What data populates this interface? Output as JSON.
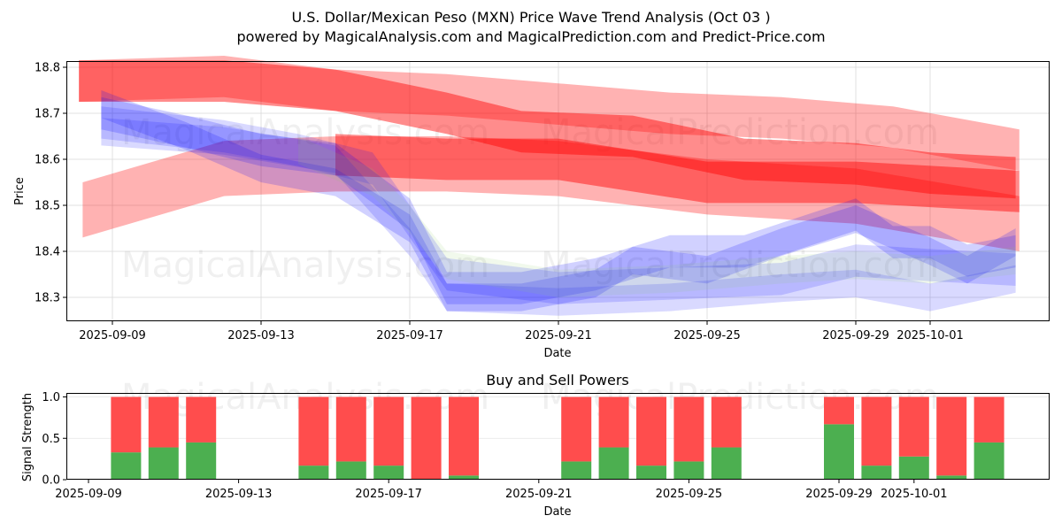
{
  "title": "U.S. Dollar/Mexican Peso (MXN) Price Wave Trend Analysis (Oct 03 )",
  "subtitle": "powered by MagicalAnalysis.com and MagicalPrediction.com and Predict-Price.com",
  "watermarks": [
    "MagicalAnalysis.com",
    "MagicalPrediction.com"
  ],
  "colors": {
    "sell": "#ff0000",
    "buy": "#0000ff",
    "green": "#4caf50",
    "red": "#ff4d4d"
  },
  "chart_data": [
    {
      "type": "area",
      "title": "",
      "xlabel": "Date",
      "ylabel": "Price",
      "xlim": [
        "2025-09-07.8",
        "2025-10-04.2"
      ],
      "ylim": [
        18.248,
        18.814
      ],
      "grid": true,
      "x_ticks": [
        "2025-09-09",
        "2025-09-13",
        "2025-09-17",
        "2025-09-21",
        "2025-09-25",
        "2025-09-29",
        "2025-10-01"
      ],
      "x_tick_days": [
        0,
        4,
        8,
        12,
        16,
        20,
        22
      ],
      "y_ticks": [
        18.3,
        18.4,
        18.5,
        18.6,
        18.7,
        18.8
      ],
      "series": [
        {
          "name": "red-band-upper",
          "color": "red",
          "alpha": 0.3,
          "halfwidth": 0.045,
          "points": [
            [
              -0.9,
              18.77
            ],
            [
              3,
              18.78
            ],
            [
              6,
              18.75
            ],
            [
              9,
              18.74
            ],
            [
              12,
              18.72
            ],
            [
              15,
              18.7
            ],
            [
              18,
              18.69
            ],
            [
              21,
              18.67
            ],
            [
              24.4,
              18.62
            ]
          ]
        },
        {
          "name": "red-band-main",
          "color": "red",
          "alpha": 0.45,
          "halfwidth": 0.045,
          "points": [
            [
              -0.9,
              18.77
            ],
            [
              3,
              18.77
            ],
            [
              6,
              18.75
            ],
            [
              9,
              18.7
            ],
            [
              11,
              18.66
            ],
            [
              14,
              18.65
            ],
            [
              17,
              18.6
            ],
            [
              20,
              18.59
            ],
            [
              22,
              18.57
            ],
            [
              24.3,
              18.56
            ]
          ]
        },
        {
          "name": "red-band-lower",
          "color": "red",
          "alpha": 0.45,
          "halfwidth": 0.045,
          "points": [
            [
              6,
              18.61
            ],
            [
              9,
              18.6
            ],
            [
              12,
              18.6
            ],
            [
              16,
              18.55
            ],
            [
              20,
              18.55
            ],
            [
              24.4,
              18.53
            ]
          ]
        },
        {
          "name": "red-band-rising",
          "color": "red",
          "alpha": 0.3,
          "halfwidth": 0.06,
          "points": [
            [
              -0.8,
              18.49
            ],
            [
              3,
              18.58
            ],
            [
              6,
              18.59
            ],
            [
              9,
              18.59
            ],
            [
              12,
              18.58
            ],
            [
              16,
              18.54
            ],
            [
              20,
              18.52
            ],
            [
              24.4,
              18.46
            ]
          ]
        },
        {
          "name": "blue-band-1",
          "color": "blue",
          "alpha": 0.18,
          "halfwidth": 0.035,
          "points": [
            [
              -0.3,
              18.7
            ],
            [
              2,
              18.66
            ],
            [
              4,
              18.62
            ],
            [
              6,
              18.6
            ],
            [
              8,
              18.48
            ],
            [
              9,
              18.32
            ],
            [
              11,
              18.32
            ],
            [
              13,
              18.35
            ],
            [
              15,
              18.4
            ],
            [
              17,
              18.4
            ],
            [
              20,
              18.48
            ],
            [
              21,
              18.42
            ],
            [
              22,
              18.42
            ],
            [
              23,
              18.38
            ],
            [
              24.3,
              18.4
            ]
          ]
        },
        {
          "name": "blue-band-2",
          "color": "blue",
          "alpha": 0.18,
          "halfwidth": 0.03,
          "points": [
            [
              -0.3,
              18.72
            ],
            [
              2,
              18.65
            ],
            [
              4,
              18.58
            ],
            [
              6,
              18.55
            ],
            [
              8,
              18.45
            ],
            [
              9,
              18.3
            ],
            [
              11,
              18.3
            ],
            [
              13,
              18.33
            ],
            [
              14,
              18.38
            ],
            [
              16,
              18.36
            ],
            [
              18,
              18.42
            ],
            [
              20,
              18.47
            ],
            [
              22,
              18.4
            ],
            [
              23,
              18.36
            ],
            [
              24.3,
              18.42
            ]
          ]
        },
        {
          "name": "blue-band-3",
          "color": "blue",
          "alpha": 0.15,
          "halfwidth": 0.035,
          "points": [
            [
              -0.3,
              18.68
            ],
            [
              3,
              18.65
            ],
            [
              5,
              18.62
            ],
            [
              7,
              18.58
            ],
            [
              9,
              18.35
            ],
            [
              12,
              18.32
            ],
            [
              15,
              18.33
            ],
            [
              18,
              18.34
            ],
            [
              20,
              18.38
            ],
            [
              22,
              18.37
            ],
            [
              24.3,
              18.36
            ]
          ]
        },
        {
          "name": "blue-band-4",
          "color": "blue",
          "alpha": 0.15,
          "halfwidth": 0.03,
          "points": [
            [
              -0.3,
              18.66
            ],
            [
              3,
              18.64
            ],
            [
              6,
              18.6
            ],
            [
              8,
              18.42
            ],
            [
              9,
              18.3
            ],
            [
              12,
              18.29
            ],
            [
              15,
              18.3
            ],
            [
              18,
              18.32
            ],
            [
              20,
              18.33
            ],
            [
              22,
              18.3
            ],
            [
              24.3,
              18.34
            ]
          ]
        },
        {
          "name": "green-band",
          "color": "green",
          "alpha": 0.12,
          "halfwidth": 0.03,
          "points": [
            [
              5,
              18.62
            ],
            [
              7,
              18.55
            ],
            [
              8,
              18.47
            ],
            [
              9,
              18.37
            ],
            [
              12,
              18.33
            ],
            [
              15,
              18.34
            ],
            [
              18,
              18.36
            ],
            [
              20,
              18.37
            ],
            [
              22,
              18.36
            ],
            [
              24.3,
              18.38
            ]
          ]
        }
      ]
    },
    {
      "type": "bar",
      "title": "Buy and Sell Powers",
      "xlabel": "Date",
      "ylabel": "Signal Strength",
      "ylim": [
        0,
        1.05
      ],
      "y_ticks": [
        "0.0",
        "0.5",
        "1.0"
      ],
      "x_ticks": [
        "2025-09-09",
        "2025-09-13",
        "2025-09-17",
        "2025-09-21",
        "2025-09-25",
        "2025-09-29",
        "2025-10-01"
      ],
      "x_tick_days": [
        0,
        4,
        8,
        12,
        16,
        20,
        22
      ],
      "categories": [
        "2025-09-10",
        "2025-09-11",
        "2025-09-12",
        "2025-09-15",
        "2025-09-16",
        "2025-09-17",
        "2025-09-18",
        "2025-09-19",
        "2025-09-22",
        "2025-09-23",
        "2025-09-24",
        "2025-09-25",
        "2025-09-26",
        "2025-09-29",
        "2025-09-30",
        "2025-10-01",
        "2025-10-02",
        "2025-10-03"
      ],
      "days": [
        1,
        2,
        3,
        6,
        7,
        8,
        9,
        10,
        13,
        14,
        15,
        16,
        17,
        20,
        21,
        22,
        23,
        24
      ],
      "series": [
        {
          "name": "Buy",
          "color": "#4caf50",
          "values": [
            0.33,
            0.39,
            0.45,
            0.17,
            0.22,
            0.17,
            0.0,
            0.05,
            0.22,
            0.39,
            0.17,
            0.22,
            0.39,
            0.67,
            0.17,
            0.28,
            0.05,
            0.45
          ]
        },
        {
          "name": "Sell",
          "color": "#ff4d4d",
          "values": [
            0.67,
            0.61,
            0.55,
            0.83,
            0.78,
            0.83,
            1.0,
            0.95,
            0.78,
            0.61,
            0.83,
            0.78,
            0.61,
            0.33,
            0.83,
            0.72,
            0.95,
            0.55
          ]
        }
      ]
    }
  ]
}
